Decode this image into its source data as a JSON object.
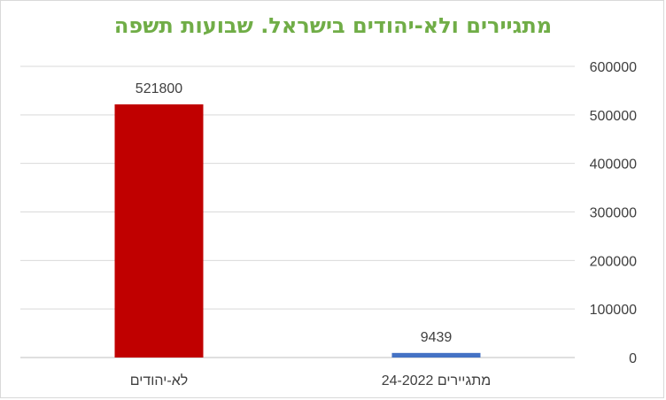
{
  "chart_data": {
    "type": "bar",
    "title": "מתגיירים ולא-יהודים בישראל. שבועות תשפה",
    "categories": [
      "לא-יהודים",
      "מתגיירים 24-2022"
    ],
    "values": [
      521800,
      9439
    ],
    "data_labels": [
      "521800",
      "9439"
    ],
    "colors": [
      "#c00000",
      "#4472c4"
    ],
    "ylim": [
      0,
      600000
    ],
    "yticks": [
      "0",
      "100000",
      "200000",
      "300000",
      "400000",
      "500000",
      "600000"
    ],
    "ytick_values": [
      0,
      100000,
      200000,
      300000,
      400000,
      500000,
      600000
    ],
    "y_axis_side": "right",
    "grid": true,
    "xlabel": "",
    "ylabel": ""
  }
}
